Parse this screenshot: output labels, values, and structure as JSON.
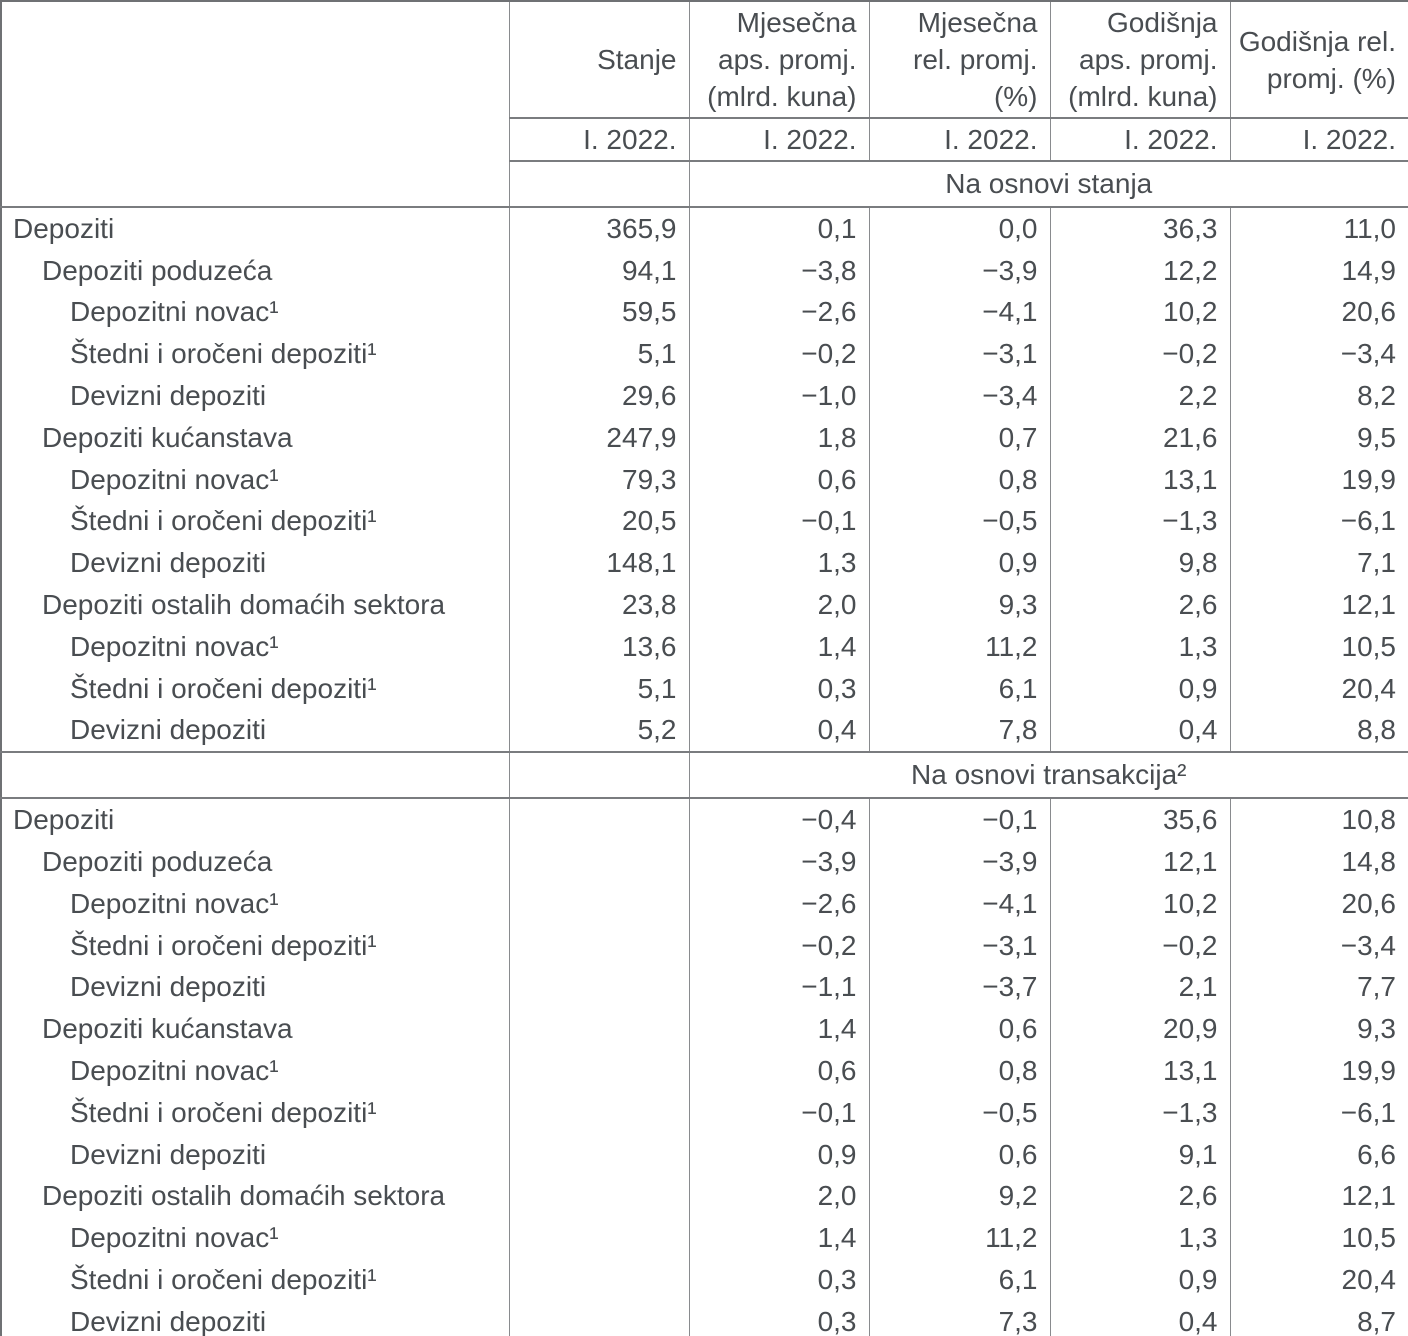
{
  "table": {
    "columns": [
      {
        "lines": [
          "Stanje"
        ],
        "period": "I. 2022."
      },
      {
        "lines": [
          "Mjesečna",
          "aps. promj.",
          "(mlrd. kuna)"
        ],
        "period": "I. 2022."
      },
      {
        "lines": [
          "Mjesečna",
          "rel. promj.",
          "(%)"
        ],
        "period": "I. 2022."
      },
      {
        "lines": [
          "Godišnja",
          "aps. promj.",
          "(mlrd. kuna)"
        ],
        "period": "I. 2022."
      },
      {
        "lines": [
          "Godišnja rel.",
          "promj. (%)"
        ],
        "period": "I. 2022."
      }
    ],
    "sections": [
      {
        "band": "Na osnovi stanja",
        "rows": [
          {
            "label": "Depoziti",
            "indent": 0,
            "values": [
              "365,9",
              "0,1",
              "0,0",
              "36,3",
              "11,0"
            ]
          },
          {
            "label": "Depoziti poduzeća",
            "indent": 1,
            "values": [
              "94,1",
              "−3,8",
              "−3,9",
              "12,2",
              "14,9"
            ]
          },
          {
            "label": "Depozitni novac¹",
            "indent": 2,
            "values": [
              "59,5",
              "−2,6",
              "−4,1",
              "10,2",
              "20,6"
            ]
          },
          {
            "label": "Štedni i oročeni depoziti¹",
            "indent": 2,
            "values": [
              "5,1",
              "−0,2",
              "−3,1",
              "−0,2",
              "−3,4"
            ]
          },
          {
            "label": "Devizni depoziti",
            "indent": 2,
            "values": [
              "29,6",
              "−1,0",
              "−3,4",
              "2,2",
              "8,2"
            ]
          },
          {
            "label": "Depoziti kućanstava",
            "indent": 1,
            "values": [
              "247,9",
              "1,8",
              "0,7",
              "21,6",
              "9,5"
            ]
          },
          {
            "label": "Depozitni novac¹",
            "indent": 2,
            "values": [
              "79,3",
              "0,6",
              "0,8",
              "13,1",
              "19,9"
            ]
          },
          {
            "label": "Štedni i oročeni depoziti¹",
            "indent": 2,
            "values": [
              "20,5",
              "−0,1",
              "−0,5",
              "−1,3",
              "−6,1"
            ]
          },
          {
            "label": "Devizni depoziti",
            "indent": 2,
            "values": [
              "148,1",
              "1,3",
              "0,9",
              "9,8",
              "7,1"
            ]
          },
          {
            "label": "Depoziti ostalih domaćih sektora",
            "indent": 1,
            "values": [
              "23,8",
              "2,0",
              "9,3",
              "2,6",
              "12,1"
            ]
          },
          {
            "label": "Depozitni novac¹",
            "indent": 2,
            "values": [
              "13,6",
              "1,4",
              "11,2",
              "1,3",
              "10,5"
            ]
          },
          {
            "label": "Štedni i oročeni depoziti¹",
            "indent": 2,
            "values": [
              "5,1",
              "0,3",
              "6,1",
              "0,9",
              "20,4"
            ]
          },
          {
            "label": "Devizni depoziti",
            "indent": 2,
            "values": [
              "5,2",
              "0,4",
              "7,8",
              "0,4",
              "8,8"
            ]
          }
        ]
      },
      {
        "band": "Na osnovi transakcija²",
        "rows": [
          {
            "label": "Depoziti",
            "indent": 0,
            "values": [
              "",
              "−0,4",
              "−0,1",
              "35,6",
              "10,8"
            ]
          },
          {
            "label": "Depoziti poduzeća",
            "indent": 1,
            "values": [
              "",
              "−3,9",
              "−3,9",
              "12,1",
              "14,8"
            ]
          },
          {
            "label": "Depozitni novac¹",
            "indent": 2,
            "values": [
              "",
              "−2,6",
              "−4,1",
              "10,2",
              "20,6"
            ]
          },
          {
            "label": "Štedni i oročeni depoziti¹",
            "indent": 2,
            "values": [
              "",
              "−0,2",
              "−3,1",
              "−0,2",
              "−3,4"
            ]
          },
          {
            "label": "Devizni depoziti",
            "indent": 2,
            "values": [
              "",
              "−1,1",
              "−3,7",
              "2,1",
              "7,7"
            ]
          },
          {
            "label": "Depoziti kućanstava",
            "indent": 1,
            "values": [
              "",
              "1,4",
              "0,6",
              "20,9",
              "9,3"
            ]
          },
          {
            "label": "Depozitni novac¹",
            "indent": 2,
            "values": [
              "",
              "0,6",
              "0,8",
              "13,1",
              "19,9"
            ]
          },
          {
            "label": "Štedni i oročeni depoziti¹",
            "indent": 2,
            "values": [
              "",
              "−0,1",
              "−0,5",
              "−1,3",
              "−6,1"
            ]
          },
          {
            "label": "Devizni depoziti",
            "indent": 2,
            "values": [
              "",
              "0,9",
              "0,6",
              "9,1",
              "6,6"
            ]
          },
          {
            "label": "Depoziti ostalih domaćih sektora",
            "indent": 1,
            "values": [
              "",
              "2,0",
              "9,2",
              "2,6",
              "12,1"
            ]
          },
          {
            "label": "Depozitni novac¹",
            "indent": 2,
            "values": [
              "",
              "1,4",
              "11,2",
              "1,3",
              "10,5"
            ]
          },
          {
            "label": "Štedni i oročeni depoziti¹",
            "indent": 2,
            "values": [
              "",
              "0,3",
              "6,1",
              "0,9",
              "20,4"
            ]
          },
          {
            "label": "Devizni depoziti",
            "indent": 2,
            "values": [
              "",
              "0,3",
              "7,3",
              "0,4",
              "8,7"
            ]
          }
        ]
      }
    ],
    "text_color": "#494d51",
    "grid_color": "#898b8e"
  }
}
